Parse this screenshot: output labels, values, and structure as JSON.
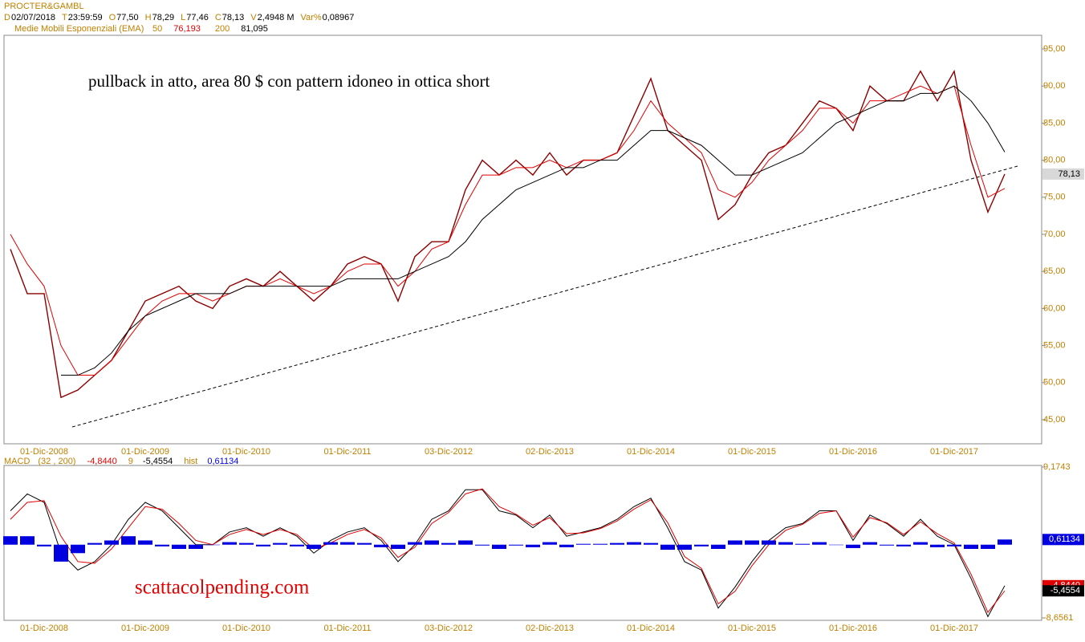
{
  "header": {
    "symbol": "PROCTER&GAMBL",
    "fields": [
      {
        "key": "D",
        "value": "02/07/2018"
      },
      {
        "key": "T",
        "value": "23:59:59"
      },
      {
        "key": "O",
        "value": "77,50"
      },
      {
        "key": "H",
        "value": "78,29"
      },
      {
        "key": "L",
        "value": "77,46"
      },
      {
        "key": "C",
        "value": "78,13"
      },
      {
        "key": "V",
        "value": "2,4948 M"
      },
      {
        "key": "Var%",
        "value": "0,08967"
      }
    ],
    "ema_legend": "Medie Mobili Esponenziali (EMA)",
    "macd_legend": {
      "name": "MACD",
      "params": "(32 , 200)",
      "signal": "9",
      "hist": "hist"
    }
  },
  "watermark": "scattacolpending.com",
  "chart_data": [
    {
      "type": "line",
      "annotation": "pullback in atto, area 80 $ con pattern idoneo in ottica short",
      "categories": [
        null,
        null,
        "01-Dic-2008",
        null,
        null,
        null,
        null,
        null,
        "01-Dic-2009",
        null,
        null,
        null,
        null,
        null,
        "01-Dic-2010",
        null,
        null,
        null,
        null,
        null,
        "01-Dic-2011",
        null,
        null,
        null,
        null,
        null,
        "03-Dic-2012",
        null,
        null,
        null,
        null,
        null,
        "02-Dic-2013",
        null,
        null,
        null,
        null,
        null,
        "01-Dic-2014",
        null,
        null,
        null,
        null,
        null,
        "01-Dic-2015",
        null,
        null,
        null,
        null,
        null,
        "01-Dic-2016",
        null,
        null,
        null,
        null,
        null,
        "01-Dic-2017",
        null,
        null,
        null
      ],
      "ylim": [
        41.75,
        96.84
      ],
      "yticks": [
        {
          "value": 45,
          "label": "45,00"
        },
        {
          "value": 50,
          "label": "50,00"
        },
        {
          "value": 55,
          "label": "55,00"
        },
        {
          "value": 60,
          "label": "60,00"
        },
        {
          "value": 65,
          "label": "65,00"
        },
        {
          "value": 70,
          "label": "70,00"
        },
        {
          "value": 75,
          "label": "75,00"
        },
        {
          "value": 80,
          "label": "80,00"
        },
        {
          "value": 85,
          "label": "85,00"
        },
        {
          "value": 90,
          "label": "90,00"
        },
        {
          "value": 95,
          "label": "95,00"
        }
      ],
      "last_label": "78,13",
      "series": [
        {
          "name": "PROCTER&GAMBL",
          "color": "#8b0000",
          "values": [
            68,
            62,
            62,
            48,
            49,
            51,
            53,
            57,
            61,
            62,
            63,
            61,
            60,
            63,
            64,
            63,
            65,
            63,
            61,
            63,
            66,
            67,
            66,
            61,
            67,
            69,
            69,
            76,
            80,
            78,
            80,
            78,
            81,
            78,
            80,
            80,
            81,
            86,
            91,
            84,
            82,
            80,
            72,
            74,
            78,
            81,
            82,
            85,
            88,
            87,
            84,
            90,
            88,
            88,
            92,
            88,
            92,
            80,
            73,
            78.13
          ]
        },
        {
          "name": "50",
          "legend_value": "76,193",
          "color": "#e00000",
          "values": [
            70,
            66,
            63,
            55,
            51,
            51,
            53,
            56,
            59,
            61,
            62,
            62,
            61,
            62,
            63,
            63,
            64,
            63,
            62,
            63,
            65,
            66,
            66,
            63,
            65,
            68,
            69,
            74,
            78,
            78,
            79,
            79,
            80,
            79,
            80,
            80,
            81,
            84,
            88,
            85,
            83,
            81,
            76,
            75,
            77,
            80,
            82,
            84,
            87,
            87,
            85,
            88,
            88,
            89,
            90,
            89,
            90,
            82,
            75,
            76.193
          ]
        },
        {
          "name": "200",
          "legend_value": "81,095",
          "color": "#000000",
          "values": [
            null,
            null,
            null,
            51,
            51,
            52,
            54,
            57,
            59,
            60,
            61,
            62,
            62,
            62,
            63,
            63,
            63,
            63,
            63,
            63,
            64,
            64,
            64,
            64,
            65,
            66,
            67,
            69,
            72,
            74,
            76,
            77,
            78,
            79,
            79,
            80,
            80,
            82,
            84,
            84,
            83,
            82,
            80,
            78,
            78,
            79,
            80,
            81,
            83,
            85,
            86,
            87,
            88,
            88,
            89,
            89,
            90,
            88,
            85,
            81.095
          ]
        }
      ]
    },
    {
      "type": "macd",
      "categories": [
        null,
        null,
        "01-Dic-2008",
        null,
        null,
        null,
        null,
        null,
        "01-Dic-2009",
        null,
        null,
        null,
        null,
        null,
        "01-Dic-2010",
        null,
        null,
        null,
        null,
        null,
        "01-Dic-2011",
        null,
        null,
        null,
        null,
        null,
        "03-Dic-2012",
        null,
        null,
        null,
        null,
        null,
        "02-Dic-2013",
        null,
        null,
        null,
        null,
        null,
        "01-Dic-2014",
        null,
        null,
        null,
        null,
        null,
        "01-Dic-2015",
        null,
        null,
        null,
        null,
        null,
        "01-Dic-2016",
        null,
        null,
        null,
        null,
        null,
        "01-Dic-2017",
        null,
        null,
        null
      ],
      "ylim": [
        -8.6561,
        9.1743
      ],
      "yticks": [
        {
          "value": 9.1743,
          "label": "9,1743"
        },
        {
          "value": -8.6561,
          "label": "-8,6561"
        }
      ],
      "series": [
        {
          "name": "MACD",
          "kind": "line",
          "color": "#000000",
          "last_label": "-4,8440",
          "label_color": "#e00000",
          "values": [
            4,
            6,
            5,
            -1,
            -3,
            -2,
            0,
            3,
            5,
            4,
            2,
            0,
            0,
            1.5,
            2,
            1,
            2,
            1,
            -1,
            0.5,
            1.5,
            2,
            0.5,
            -2,
            0,
            3,
            4,
            6.5,
            6.5,
            4,
            3.5,
            2,
            3.5,
            1,
            1.5,
            2,
            3,
            4.5,
            5.5,
            2,
            -2,
            -3,
            -7.5,
            -5,
            -2,
            0.5,
            2,
            2.5,
            4,
            4,
            0.5,
            3.5,
            2.5,
            1,
            3,
            1,
            0,
            -4,
            -8.5,
            -4.844
          ]
        },
        {
          "name": "9",
          "kind": "line",
          "color": "#e00000",
          "last_label": "-5,4554",
          "label_color": "#000000",
          "values": [
            3,
            5,
            5.2,
            1,
            -2,
            -2.2,
            -0.5,
            2,
            4.5,
            4.2,
            2.5,
            0.5,
            0,
            1.2,
            1.8,
            1.2,
            1.8,
            1.2,
            -0.5,
            0.2,
            1.2,
            1.8,
            0.8,
            -1.5,
            -0.3,
            2.5,
            3.8,
            6,
            6.6,
            4.5,
            3.6,
            2.3,
            3.2,
            1.3,
            1.4,
            1.9,
            2.8,
            4.2,
            5.3,
            2.6,
            -1.4,
            -2.8,
            -7,
            -5.5,
            -2.5,
            0,
            1.7,
            2.4,
            3.7,
            4,
            0.9,
            3.2,
            2.6,
            1.2,
            2.7,
            1.3,
            0.2,
            -3.5,
            -8,
            -5.4554
          ]
        },
        {
          "name": "hist",
          "kind": "bar",
          "color": "#0000e0",
          "last_label": "0,61134",
          "label_color": "#0000e0",
          "values": [
            1,
            1,
            -0.2,
            -2,
            -1,
            0.2,
            0.5,
            1,
            0.5,
            -0.2,
            -0.5,
            -0.5,
            0,
            0.3,
            0.2,
            -0.2,
            0.2,
            -0.2,
            -0.5,
            0.3,
            0.3,
            0.2,
            -0.3,
            -0.5,
            0.3,
            0.5,
            0.2,
            0.5,
            -0.1,
            -0.5,
            -0.1,
            -0.3,
            0.3,
            -0.3,
            0.1,
            0.1,
            0.2,
            0.3,
            0.2,
            -0.6,
            -0.6,
            -0.2,
            -0.5,
            0.5,
            0.5,
            0.5,
            0.3,
            0.1,
            0.3,
            0,
            -0.4,
            0.3,
            -0.1,
            -0.2,
            0.3,
            -0.3,
            -0.2,
            -0.5,
            -0.5,
            0.61134
          ]
        }
      ]
    }
  ]
}
